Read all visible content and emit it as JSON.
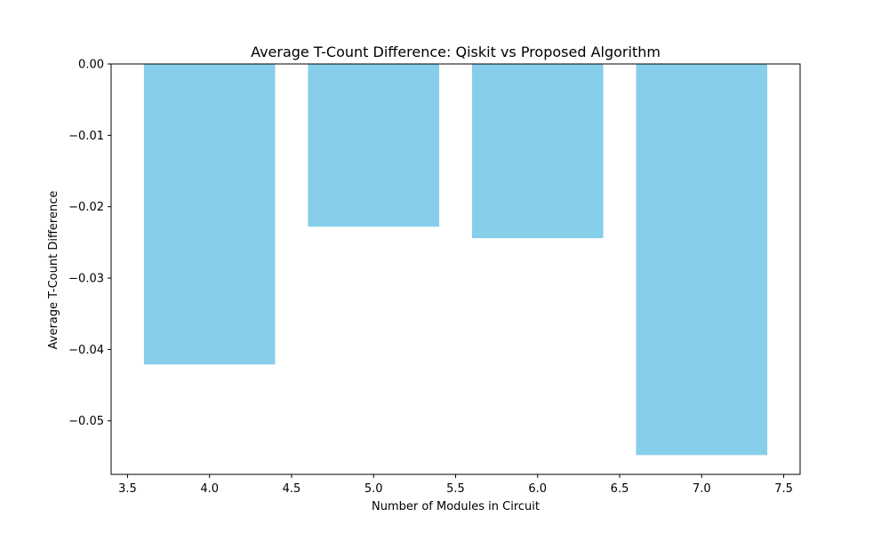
{
  "chart_data": {
    "type": "bar",
    "title": "Average T-Count Difference: Qiskit vs Proposed Algorithm",
    "xlabel": "Number of Modules in Circuit",
    "ylabel": "Average T-Count Difference",
    "x": [
      4,
      5,
      6,
      7
    ],
    "values": [
      -0.0421,
      -0.0228,
      -0.0244,
      -0.0548
    ],
    "bar_width": 0.8,
    "xlim": [
      3.4,
      7.6
    ],
    "ylim": [
      -0.0575,
      0.0
    ],
    "xticks": [
      "3.5",
      "4.0",
      "4.5",
      "5.0",
      "5.5",
      "6.0",
      "6.5",
      "7.0",
      "7.5"
    ],
    "yticks": [
      "0.00",
      "−0.01",
      "−0.02",
      "−0.03",
      "−0.04",
      "−0.05"
    ],
    "bar_color": "#87CEEB",
    "grid": false,
    "legend": "none"
  }
}
